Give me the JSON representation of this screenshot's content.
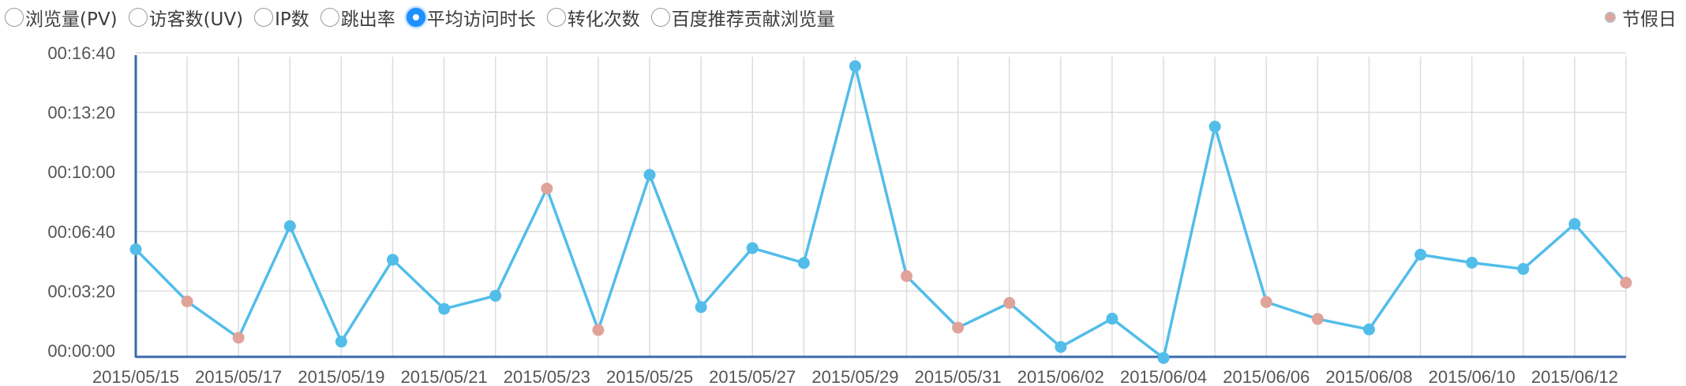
{
  "metrics": [
    {
      "label": "浏览量(PV)",
      "selected": false
    },
    {
      "label": "访客数(UV)",
      "selected": false
    },
    {
      "label": "IP数",
      "selected": false
    },
    {
      "label": "跳出率",
      "selected": false
    },
    {
      "label": "平均访问时长",
      "selected": true
    },
    {
      "label": "转化次数",
      "selected": false
    },
    {
      "label": "百度推荐贡献浏览量",
      "selected": false
    }
  ],
  "legend": {
    "label": "节假日",
    "color": "#e0a39a"
  },
  "colors": {
    "line": "#52bde9",
    "point": "#52bde9",
    "holiday": "#e0a39a",
    "axis": "#3a6aa8",
    "grid": "#dddddd"
  },
  "chart_data": {
    "type": "line",
    "x": [
      "2015/05/15",
      "2015/05/16",
      "2015/05/17",
      "2015/05/18",
      "2015/05/19",
      "2015/05/20",
      "2015/05/21",
      "2015/05/22",
      "2015/05/23",
      "2015/05/24",
      "2015/05/25",
      "2015/05/26",
      "2015/05/27",
      "2015/05/28",
      "2015/05/29",
      "2015/05/30",
      "2015/05/31",
      "2015/06/01",
      "2015/06/02",
      "2015/06/03",
      "2015/06/04",
      "2015/06/05",
      "2015/06/06",
      "2015/06/07",
      "2015/06/08",
      "2015/06/09",
      "2015/06/10",
      "2015/06/11",
      "2015/06/12",
      "2015/06/13"
    ],
    "x_tick_labels": [
      "2015/05/15",
      "2015/05/17",
      "2015/05/19",
      "2015/05/21",
      "2015/05/23",
      "2015/05/25",
      "2015/05/27",
      "2015/05/29",
      "2015/05/31",
      "2015/06/02",
      "2015/06/04",
      "2015/06/06",
      "2015/06/08",
      "2015/06/10",
      "2015/06/12"
    ],
    "series": [
      {
        "values_seconds": [
          340,
          165,
          43,
          418,
          30,
          305,
          140,
          184,
          544,
          69,
          590,
          146,
          344,
          294,
          955,
          250,
          77,
          160,
          12,
          107,
          -25,
          752,
          163,
          106,
          71,
          322,
          295,
          274,
          425,
          228
        ],
        "holiday": [
          false,
          true,
          true,
          false,
          false,
          false,
          false,
          false,
          true,
          true,
          false,
          false,
          false,
          false,
          false,
          true,
          true,
          true,
          false,
          false,
          false,
          false,
          true,
          true,
          false,
          false,
          false,
          false,
          false,
          true
        ]
      }
    ],
    "y_tick_labels": [
      "00:00:00",
      "00:03:20",
      "00:06:40",
      "00:10:00",
      "00:13:20",
      "00:16:40"
    ],
    "y_tick_values_seconds": [
      0,
      200,
      400,
      600,
      800,
      1000
    ],
    "ylim_seconds": [
      0,
      1000
    ],
    "grid": true
  }
}
